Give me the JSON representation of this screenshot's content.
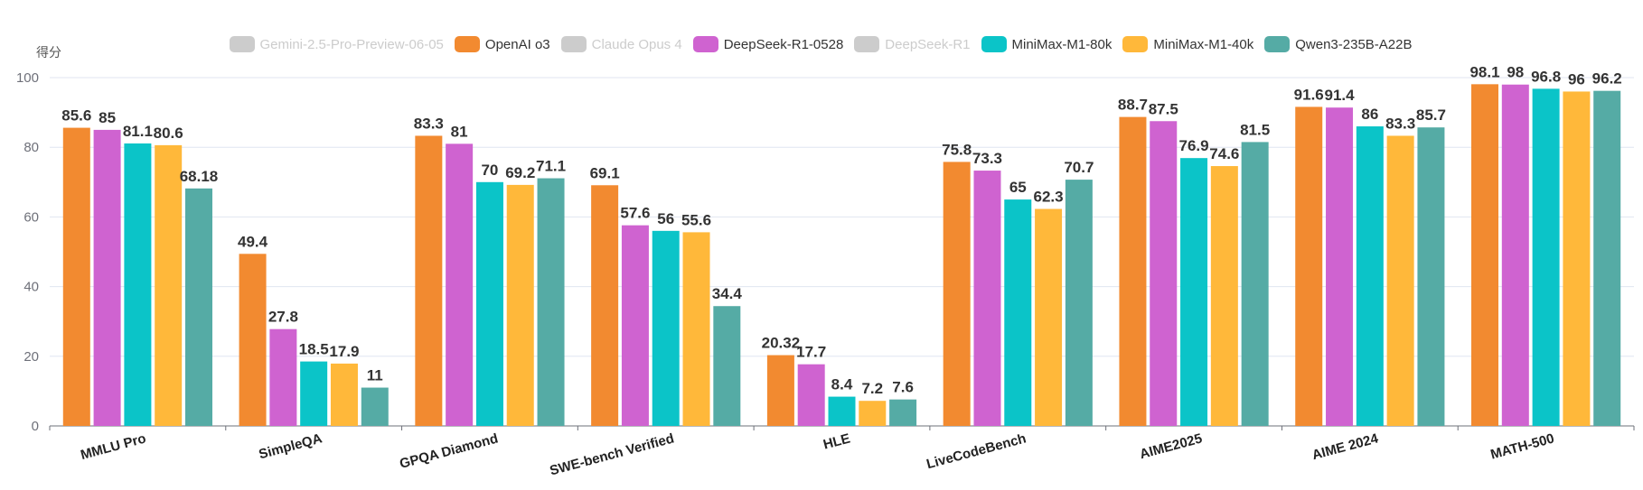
{
  "chart_data": {
    "type": "bar",
    "ylabel": "得分",
    "ylim": [
      0,
      100
    ],
    "yticks": [
      0,
      20,
      40,
      60,
      80,
      100
    ],
    "categories": [
      "MMLU Pro",
      "SimpleQA",
      "GPQA Diamond",
      "SWE-bench Verified",
      "HLE",
      "LiveCodeBench",
      "AIME2025",
      "AIME 2024",
      "MATH-500"
    ],
    "legend": [
      {
        "name": "Gemini-2.5-Pro-Preview-06-05",
        "color": "#cccccc",
        "enabled": false
      },
      {
        "name": "OpenAI o3",
        "color": "#f28a30",
        "enabled": true
      },
      {
        "name": "Claude Opus 4",
        "color": "#cccccc",
        "enabled": false
      },
      {
        "name": "DeepSeek-R1-0528",
        "color": "#cf63d0",
        "enabled": true
      },
      {
        "name": "DeepSeek-R1",
        "color": "#cccccc",
        "enabled": false
      },
      {
        "name": "MiniMax-M1-80k",
        "color": "#0bc4c8",
        "enabled": true
      },
      {
        "name": "MiniMax-M1-40k",
        "color": "#ffb83a",
        "enabled": true
      },
      {
        "name": "Qwen3-235B-A22B",
        "color": "#55aba5",
        "enabled": true
      }
    ],
    "series": [
      {
        "name": "OpenAI o3",
        "color": "#f28a30",
        "values": [
          85.6,
          49.4,
          83.3,
          69.1,
          20.32,
          75.8,
          88.7,
          91.6,
          98.1
        ],
        "labels": [
          "85.6",
          "49.4",
          "83.3",
          "69.1",
          "20.32",
          "75.8",
          "88.7",
          "91.6",
          "98.1"
        ]
      },
      {
        "name": "DeepSeek-R1-0528",
        "color": "#cf63d0",
        "values": [
          85,
          27.8,
          81,
          57.6,
          17.7,
          73.3,
          87.5,
          91.4,
          98
        ],
        "labels": [
          "85",
          "27.8",
          "81",
          "57.6",
          "17.7",
          "73.3",
          "87.5",
          "91.4",
          "98"
        ]
      },
      {
        "name": "MiniMax-M1-80k",
        "color": "#0bc4c8",
        "values": [
          81.1,
          18.5,
          70,
          56,
          8.4,
          65,
          76.9,
          86,
          96.8
        ],
        "labels": [
          "81.1",
          "18.5",
          "70",
          "56",
          "8.4",
          "65",
          "76.9",
          "86",
          "96.8"
        ]
      },
      {
        "name": "MiniMax-M1-40k",
        "color": "#ffb83a",
        "values": [
          80.6,
          17.9,
          69.2,
          55.6,
          7.2,
          62.3,
          74.6,
          83.3,
          96
        ],
        "labels": [
          "80.6",
          "17.9",
          "69.2",
          "55.6",
          "7.2",
          "62.3",
          "74.6",
          "83.3",
          "96"
        ]
      },
      {
        "name": "Qwen3-235B-A22B",
        "color": "#55aba5",
        "values": [
          68.18,
          11,
          71.1,
          34.4,
          7.6,
          70.7,
          81.5,
          85.7,
          96.2
        ],
        "labels": [
          "68.18",
          "11",
          "71.1",
          "34.4",
          "7.6",
          "70.7",
          "81.5",
          "85.7",
          "96.2"
        ]
      }
    ]
  }
}
